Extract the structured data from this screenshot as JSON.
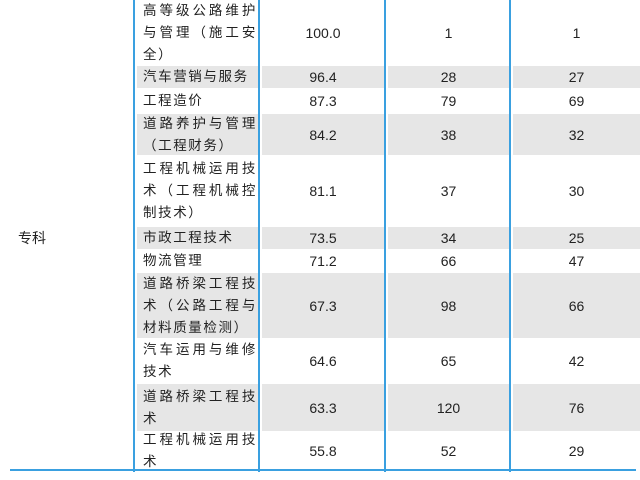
{
  "category": "专科",
  "rows": [
    {
      "name": "高等级公路维护与管理（施工安全）",
      "score": "100.0",
      "a": "1",
      "b": "1",
      "shaded": false
    },
    {
      "name": "汽车营销与服务",
      "score": "96.4",
      "a": "28",
      "b": "27",
      "shaded": true
    },
    {
      "name": "工程造价",
      "score": "87.3",
      "a": "79",
      "b": "69",
      "shaded": false
    },
    {
      "name": "道路养护与管理（工程财务）",
      "score": "84.2",
      "a": "38",
      "b": "32",
      "shaded": true
    },
    {
      "name": "工程机械运用技术（工程机械控制技术）",
      "score": "81.1",
      "a": "37",
      "b": "30",
      "shaded": false
    },
    {
      "name": "市政工程技术",
      "score": "73.5",
      "a": "34",
      "b": "25",
      "shaded": true
    },
    {
      "name": "物流管理",
      "score": "71.2",
      "a": "66",
      "b": "47",
      "shaded": false
    },
    {
      "name": "道路桥梁工程技术（公路工程与材料质量检测）",
      "score": "67.3",
      "a": "98",
      "b": "66",
      "shaded": true
    },
    {
      "name": "汽车运用与维修技术",
      "score": "64.6",
      "a": "65",
      "b": "42",
      "shaded": false
    },
    {
      "name": "道路桥梁工程技术",
      "score": "63.3",
      "a": "120",
      "b": "76",
      "shaded": true
    },
    {
      "name": "工程机械运用技术",
      "score": "55.8",
      "a": "52",
      "b": "29",
      "shaded": false
    }
  ]
}
